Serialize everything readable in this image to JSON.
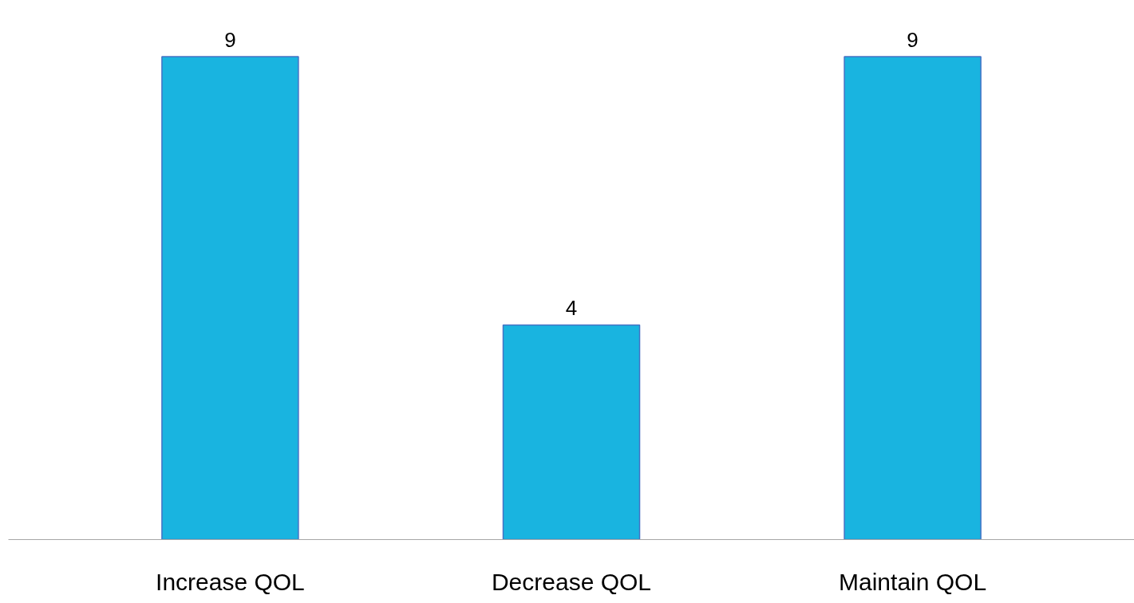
{
  "chart_data": {
    "type": "bar",
    "categories": [
      "Increase QOL",
      "Decrease QOL",
      "Maintain QOL"
    ],
    "values": [
      9,
      4,
      9
    ],
    "color": "#19b4e0",
    "data_labels": true,
    "grid": false
  }
}
